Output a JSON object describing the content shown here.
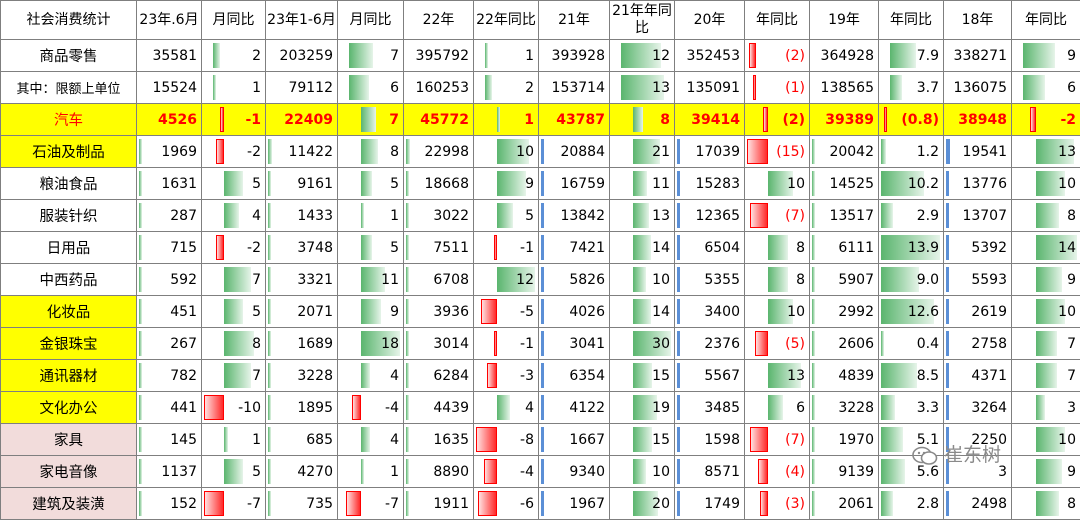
{
  "header": [
    "社会消费统计",
    "23年.6月",
    "月同比",
    "23年1-6月",
    "月同比",
    "22年",
    "22年同比",
    "21年",
    "21年年同比",
    "20年",
    "年同比",
    "19年",
    "年同比",
    "18年",
    "年同比"
  ],
  "colors": {
    "highlight": "#ffff00",
    "category_pink": "#f2dcdb",
    "positive_bar": "#5ab56e",
    "volume_bar": "#5b8fd6",
    "negative_bar": "#ff0000"
  },
  "rows": [
    {
      "name": "商品零售",
      "style": "plain",
      "cells": [
        "35581",
        "2",
        "203259",
        "7",
        "395792",
        "1",
        "393928",
        "12",
        "352453",
        "(2)",
        "364928",
        "7.9",
        "338271",
        "9"
      ]
    },
    {
      "name": "其中：限额上单位",
      "style": "plain",
      "cells": [
        "15524",
        "1",
        "79112",
        "6",
        "160253",
        "2",
        "153714",
        "13",
        "135091",
        "(1)",
        "138565",
        "3.7",
        "136075",
        "6"
      ]
    },
    {
      "name": "汽车",
      "style": "car",
      "cells": [
        "4526",
        "-1",
        "22409",
        "7",
        "45772",
        "1",
        "43787",
        "8",
        "39414",
        "(2)",
        "39389",
        "(0.8)",
        "38948",
        "-2"
      ]
    },
    {
      "name": "石油及制品",
      "style": "hl",
      "cells": [
        "1969",
        "-2",
        "11422",
        "8",
        "22998",
        "10",
        "20884",
        "21",
        "17039",
        "(15)",
        "20042",
        "1.2",
        "19541",
        "13"
      ]
    },
    {
      "name": "粮油食品",
      "style": "plain",
      "cells": [
        "1631",
        "5",
        "9161",
        "5",
        "18668",
        "9",
        "16759",
        "11",
        "15283",
        "10",
        "14525",
        "10.2",
        "13776",
        "10"
      ]
    },
    {
      "name": "服装针织",
      "style": "plain",
      "cells": [
        "287",
        "4",
        "1433",
        "1",
        "3022",
        "5",
        "13842",
        "13",
        "12365",
        "(7)",
        "13517",
        "2.9",
        "13707",
        "8"
      ]
    },
    {
      "name": "日用品",
      "style": "plain",
      "cells": [
        "715",
        "-2",
        "3748",
        "5",
        "7511",
        "-1",
        "7421",
        "14",
        "6504",
        "8",
        "6111",
        "13.9",
        "5392",
        "14"
      ]
    },
    {
      "name": "中西药品",
      "style": "plain",
      "cells": [
        "592",
        "7",
        "3321",
        "11",
        "6708",
        "12",
        "5826",
        "10",
        "5355",
        "8",
        "5907",
        "9.0",
        "5593",
        "9"
      ]
    },
    {
      "name": "化妆品",
      "style": "hl",
      "cells": [
        "451",
        "5",
        "2071",
        "9",
        "3936",
        "-5",
        "4026",
        "14",
        "3400",
        "10",
        "2992",
        "12.6",
        "2619",
        "10"
      ]
    },
    {
      "name": "金银珠宝",
      "style": "hl",
      "cells": [
        "267",
        "8",
        "1689",
        "18",
        "3014",
        "-1",
        "3041",
        "30",
        "2376",
        "(5)",
        "2606",
        "0.4",
        "2758",
        "7"
      ]
    },
    {
      "name": "通讯器材",
      "style": "hl",
      "cells": [
        "782",
        "7",
        "3228",
        "4",
        "6284",
        "-3",
        "6354",
        "15",
        "5567",
        "13",
        "4839",
        "8.5",
        "4371",
        "7"
      ]
    },
    {
      "name": "文化办公",
      "style": "hl",
      "cells": [
        "441",
        "-10",
        "1895",
        "-4",
        "4439",
        "4",
        "4122",
        "19",
        "3485",
        "6",
        "3228",
        "3.3",
        "3264",
        "3"
      ]
    },
    {
      "name": "家具",
      "style": "pk",
      "cells": [
        "145",
        "1",
        "685",
        "4",
        "1635",
        "-8",
        "1667",
        "15",
        "1598",
        "(7)",
        "1970",
        "5.1",
        "2250",
        "10"
      ]
    },
    {
      "name": "家电音像",
      "style": "pk",
      "cells": [
        "1137",
        "5",
        "4270",
        "1",
        "8890",
        "-4",
        "9340",
        "10",
        "8571",
        "(4)",
        "9139",
        "5.6",
        "3",
        "9"
      ]
    },
    {
      "name": "建筑及装潢",
      "style": "pk",
      "cells": [
        "152",
        "-7",
        "735",
        "-7",
        "1911",
        "-6",
        "1967",
        "20",
        "1749",
        "(3)",
        "2061",
        "2.8",
        "2498",
        "8"
      ]
    }
  ],
  "watermark": {
    "icon": "wechat-icon",
    "text": "崔东树"
  }
}
